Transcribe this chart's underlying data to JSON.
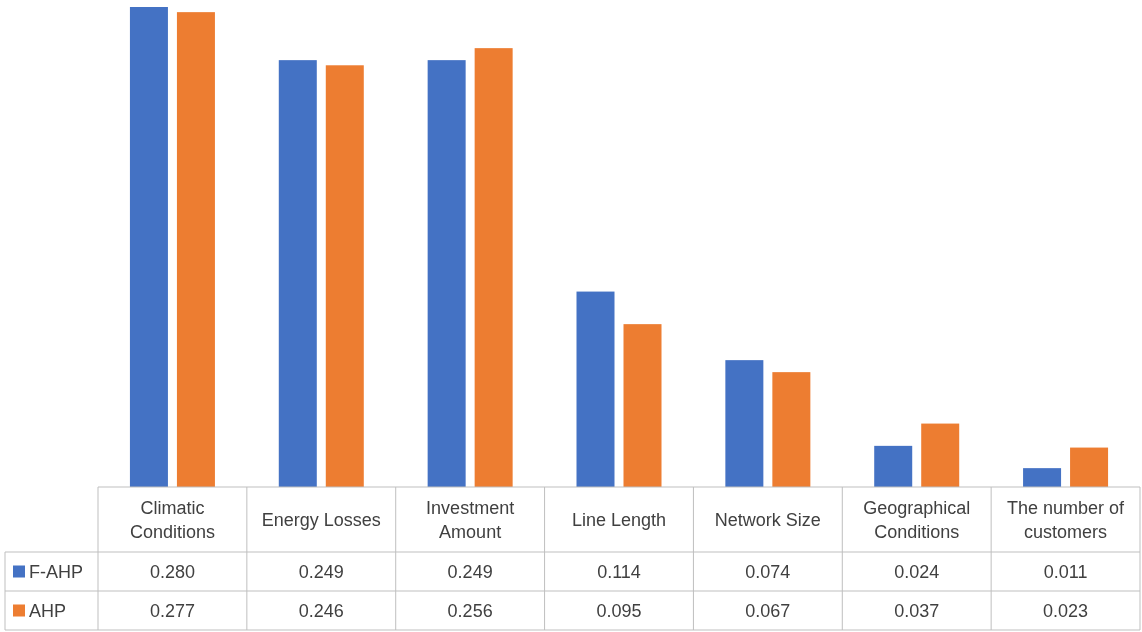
{
  "chart_data": {
    "type": "bar",
    "categories": [
      "Climatic Conditions",
      "Energy Losses",
      "Investment Amount",
      "Line Length",
      "Network Size",
      "Geographical Conditions",
      "The number of customers"
    ],
    "series": [
      {
        "name": "F-AHP",
        "color": "#4472c4",
        "values": [
          0.28,
          0.249,
          0.249,
          0.114,
          0.074,
          0.024,
          0.011
        ],
        "value_labels": [
          "0.280",
          "0.249",
          "0.249",
          "0.114",
          "0.074",
          "0.024",
          "0.011"
        ]
      },
      {
        "name": "AHP",
        "color": "#ed7d31",
        "values": [
          0.277,
          0.246,
          0.256,
          0.095,
          0.067,
          0.037,
          0.023
        ],
        "value_labels": [
          "0.277",
          "0.246",
          "0.256",
          "0.095",
          "0.067",
          "0.037",
          "0.023"
        ]
      }
    ],
    "legend": "bottom left",
    "grid": false
  }
}
